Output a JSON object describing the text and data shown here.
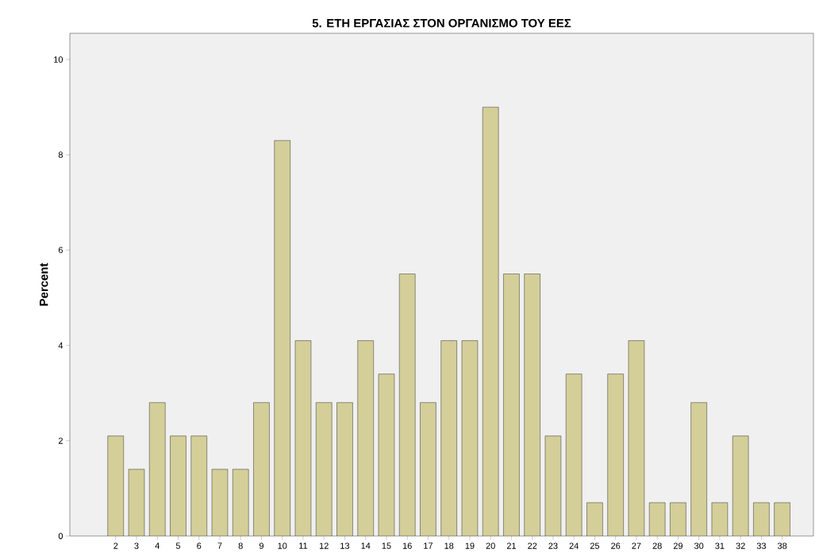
{
  "chart_data": {
    "type": "bar",
    "title": "5. ΕΤΗ ΕΡΓΑΣΙΑΣ ΣΤΟΝ ΟΡΓΑΝΙΣΜΟ ΤΟΥ ΕΕΣ",
    "ylabel": "Percent",
    "categories": [
      "2",
      "3",
      "4",
      "5",
      "6",
      "7",
      "8",
      "9",
      "10",
      "11",
      "12",
      "13",
      "14",
      "15",
      "16",
      "17",
      "18",
      "19",
      "20",
      "21",
      "22",
      "23",
      "24",
      "25",
      "26",
      "27",
      "28",
      "29",
      "30",
      "31",
      "32",
      "33",
      "38"
    ],
    "values": [
      2.1,
      1.4,
      2.8,
      2.1,
      2.1,
      1.4,
      1.4,
      2.8,
      8.3,
      4.1,
      2.8,
      2.8,
      4.1,
      3.4,
      5.5,
      2.8,
      4.1,
      4.1,
      9.0,
      5.5,
      5.5,
      2.1,
      3.4,
      0.7,
      3.4,
      4.1,
      0.7,
      0.7,
      2.8,
      0.7,
      2.1,
      0.7,
      0.7
    ],
    "color": "#d4cf99",
    "ylim": [
      0,
      10.55
    ],
    "yticks": [
      0,
      2,
      4,
      6,
      8,
      10
    ],
    "grid": false
  }
}
